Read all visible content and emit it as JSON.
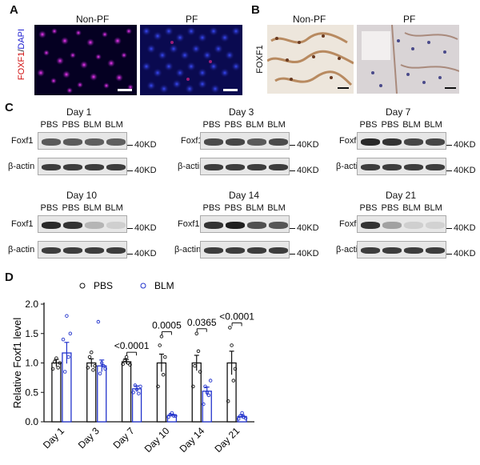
{
  "panels": {
    "a": {
      "label": "A",
      "ylabel_red": "FOXF1",
      "ylabel_slash": "/",
      "ylabel_blue": "DAPI",
      "left_title": "Non-PF",
      "right_title": "PF"
    },
    "b": {
      "label": "B",
      "ylabel": "FOXF1",
      "left_title": "Non-PF",
      "right_title": "PF"
    },
    "c": {
      "label": "C",
      "marker": "40KD",
      "blots": [
        {
          "day": "Day 1",
          "lanes": [
            "PBS",
            "PBS",
            "BLM",
            "BLM"
          ],
          "rows": [
            "Foxf1",
            "β-actin"
          ],
          "foxf1_intensity": [
            0.7,
            0.7,
            0.68,
            0.68
          ]
        },
        {
          "day": "Day 3",
          "lanes": [
            "PBS",
            "PBS",
            "BLM",
            "BLM"
          ],
          "rows": [
            "Foxf1",
            "β-actin"
          ],
          "foxf1_intensity": [
            0.78,
            0.8,
            0.7,
            0.78
          ]
        },
        {
          "day": "Day 7",
          "lanes": [
            "PBS",
            "PBS",
            "BLM",
            "BLM"
          ],
          "rows": [
            "Foxf1",
            "β-actin"
          ],
          "foxf1_intensity": [
            0.95,
            0.9,
            0.8,
            0.8
          ]
        },
        {
          "day": "Day 10",
          "lanes": [
            "PBS",
            "PBS",
            "BLM",
            "BLM"
          ],
          "rows": [
            "Foxf1",
            "β-actin"
          ],
          "foxf1_intensity": [
            0.95,
            0.9,
            0.25,
            0.12
          ]
        },
        {
          "day": "Day 14",
          "lanes": [
            "PBS",
            "PBS",
            "BLM",
            "BLM"
          ],
          "rows": [
            "Foxf1",
            "β-actin"
          ],
          "foxf1_intensity": [
            0.9,
            1.0,
            0.75,
            0.72
          ]
        },
        {
          "day": "Day 21",
          "lanes": [
            "PBS",
            "PBS",
            "BLM",
            "BLM"
          ],
          "rows": [
            "Foxf1",
            "β-actin"
          ],
          "foxf1_intensity": [
            0.9,
            0.35,
            0.12,
            0.1
          ]
        }
      ],
      "row_labels_alt": {
        "day14_actin": "β actin",
        "day21_actin": "β-actin"
      }
    },
    "d": {
      "label": "D"
    }
  },
  "chart_data": {
    "type": "bar",
    "ylabel": "Relative Foxf1 level",
    "ylim": [
      0,
      2.0
    ],
    "yticks": [
      "0.0",
      "0.5",
      "1.0",
      "1.5",
      "2.0"
    ],
    "categories": [
      "Day 1",
      "Day 3",
      "Day 7",
      "Day 10",
      "Day 14",
      "Day 21"
    ],
    "series": [
      {
        "name": "PBS",
        "color": "#111111",
        "values": [
          1.0,
          1.0,
          1.02,
          1.0,
          1.0,
          1.0
        ],
        "errors": [
          0.06,
          0.07,
          0.04,
          0.15,
          0.13,
          0.2
        ],
        "points": [
          [
            0.9,
            1.02,
            1.08,
            0.92,
            1.0
          ],
          [
            0.92,
            1.1,
            1.18,
            0.88,
            0.95
          ],
          [
            0.98,
            1.05,
            1.1,
            1.0,
            0.97
          ],
          [
            0.6,
            1.3,
            1.45,
            0.8,
            1.1
          ],
          [
            0.6,
            0.95,
            1.5,
            1.2,
            0.85
          ],
          [
            0.35,
            1.6,
            1.3,
            0.7,
            0.9
          ]
        ]
      },
      {
        "name": "BLM",
        "color": "#2233cc",
        "values": [
          1.17,
          0.95,
          0.56,
          0.11,
          0.52,
          0.09
        ],
        "errors": [
          0.18,
          0.1,
          0.05,
          0.02,
          0.07,
          0.03
        ],
        "points": [
          [
            1.4,
            0.85,
            1.8,
            1.1,
            1.5
          ],
          [
            1.7,
            0.82,
            1.0,
            0.95,
            0.9
          ],
          [
            0.5,
            0.62,
            0.55,
            0.48,
            0.6
          ],
          [
            0.08,
            0.12,
            0.15,
            0.1,
            0.1
          ],
          [
            0.3,
            0.6,
            0.5,
            0.45,
            0.7
          ],
          [
            0.05,
            0.1,
            0.15,
            0.08,
            0.06
          ]
        ]
      }
    ],
    "annotations": [
      {
        "category_index": 2,
        "text": "<0.0001"
      },
      {
        "category_index": 3,
        "text": "0.0005"
      },
      {
        "category_index": 4,
        "text": "0.0365"
      },
      {
        "category_index": 5,
        "text": "<0.0001"
      }
    ],
    "legend": "top"
  }
}
